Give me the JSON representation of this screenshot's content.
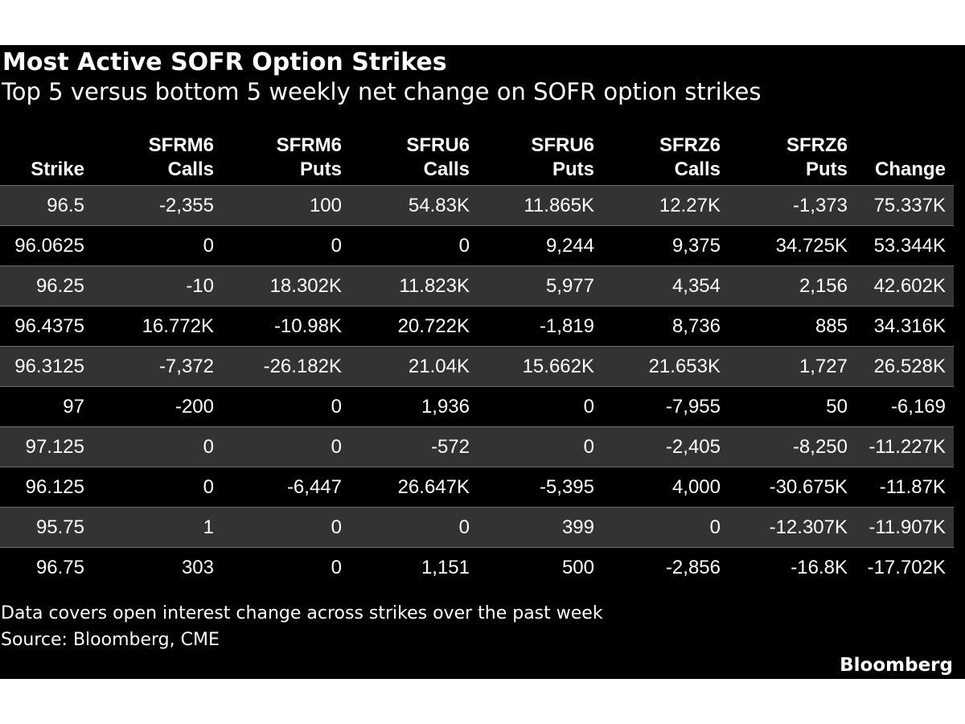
{
  "chart_data": {
    "type": "table",
    "title": "Most Active SOFR Option Strikes",
    "subtitle": "Top 5 versus bottom 5 weekly net change on SOFR option strikes",
    "columns": [
      [
        "Strike"
      ],
      [
        "SFRM6",
        "Calls"
      ],
      [
        "SFRM6",
        "Puts"
      ],
      [
        "SFRU6",
        "Calls"
      ],
      [
        "SFRU6",
        "Puts"
      ],
      [
        "SFRZ6",
        "Calls"
      ],
      [
        "SFRZ6",
        "Puts"
      ],
      [
        "Change"
      ]
    ],
    "rows": [
      [
        "96.5",
        "-2,355",
        "100",
        "54.83K",
        "11.865K",
        "12.27K",
        "-1,373",
        "75.337K"
      ],
      [
        "96.0625",
        "0",
        "0",
        "0",
        "9,244",
        "9,375",
        "34.725K",
        "53.344K"
      ],
      [
        "96.25",
        "-10",
        "18.302K",
        "11.823K",
        "5,977",
        "4,354",
        "2,156",
        "42.602K"
      ],
      [
        "96.4375",
        "16.772K",
        "-10.98K",
        "20.722K",
        "-1,819",
        "8,736",
        "885",
        "34.316K"
      ],
      [
        "96.3125",
        "-7,372",
        "-26.182K",
        "21.04K",
        "15.662K",
        "21.653K",
        "1,727",
        "26.528K"
      ],
      [
        "97",
        "-200",
        "0",
        "1,936",
        "0",
        "-7,955",
        "50",
        "-6,169"
      ],
      [
        "97.125",
        "0",
        "0",
        "-572",
        "0",
        "-2,405",
        "-8,250",
        "-11.227K"
      ],
      [
        "96.125",
        "0",
        "-6,447",
        "26.647K",
        "-5,395",
        "4,000",
        "-30.675K",
        "-11.87K"
      ],
      [
        "95.75",
        "1",
        "0",
        "0",
        "399",
        "0",
        "-12.307K",
        "-11.907K"
      ],
      [
        "96.75",
        "303",
        "0",
        "1,151",
        "500",
        "-2,856",
        "-16.8K",
        "-17.702K"
      ]
    ],
    "footnote": "Data covers open interest change across strikes over the past week",
    "source": "Source: Bloomberg, CME"
  },
  "colors": {
    "background": "#000000",
    "text": "#ffffff",
    "shaded_row": "#333333",
    "divider": "#6b6b6b"
  },
  "branding": {
    "logo_text": "Bloomberg"
  }
}
